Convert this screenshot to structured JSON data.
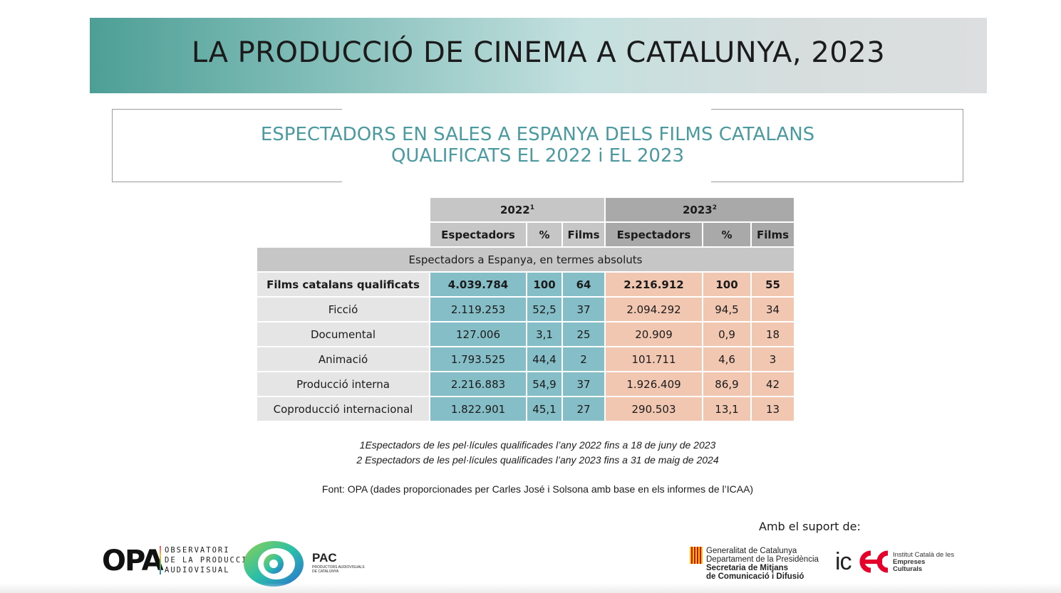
{
  "header": {
    "title": "LA PRODUCCIÓ DE CINEMA A CATALUNYA, 2023"
  },
  "subtitle": {
    "line1": "ESPECTADORS EN SALES A ESPANYA DELS FILMS CATALANS",
    "line2": "QUALIFICATS EL 2022 i EL 2023"
  },
  "table": {
    "year_2022": "2022",
    "year_2022_sup": "1",
    "year_2023": "2023",
    "year_2023_sup": "2",
    "columns": [
      "Espectadors",
      "%",
      "Films",
      "Espectadors",
      "%",
      "Films"
    ],
    "section_label": "Espectadors a Espanya, en termes absoluts",
    "rows": [
      {
        "label": "Films catalans qualificats",
        "e22": "4.039.784",
        "p22": "100",
        "f22": "64",
        "e23": "2.216.912",
        "p23": "100",
        "f23": "55"
      },
      {
        "label": "Ficció",
        "e22": "2.119.253",
        "p22": "52,5",
        "f22": "37",
        "e23": "2.094.292",
        "p23": "94,5",
        "f23": "34"
      },
      {
        "label": "Documental",
        "e22": "127.006",
        "p22": "3,1",
        "f22": "25",
        "e23": "20.909",
        "p23": "0,9",
        "f23": "18"
      },
      {
        "label": "Animació",
        "e22": "1.793.525",
        "p22": "44,4",
        "f22": "2",
        "e23": "101.711",
        "p23": "4,6",
        "f23": "3"
      },
      {
        "label": "Producció interna",
        "e22": "2.216.883",
        "p22": "54,9",
        "f22": "37",
        "e23": "1.926.409",
        "p23": "86,9",
        "f23": "42"
      },
      {
        "label": "Coproducció internacional",
        "e22": "1.822.901",
        "p22": "45,1",
        "f22": "27",
        "e23": "290.503",
        "p23": "13,1",
        "f23": "13"
      }
    ]
  },
  "notes": {
    "note1": "1Espectadors de les pel·lícules qualificades l’any 2022 fins a 18 de juny de 2023",
    "note2": "2 Espectadors de les pel·lícules qualificades l’any 2023 fins a 31 de maig de 2024",
    "source": "Font: OPA  (dades proporcionades per Carles José i Solsona amb base en els informes de l’ICAA)"
  },
  "footer": {
    "support": "Amb el suport de:",
    "opa": {
      "name": "OPA",
      "line1": "OBSERVATORI",
      "line2": "DE LA PRODUCCIÓ",
      "line3": "AUDIOVISUAL"
    },
    "pac": {
      "name": "PAC",
      "sub": "PRODUCTORS AUDIOVISUALS DE CATALUNYA"
    },
    "generalitat": {
      "line1": "Generalitat de Catalunya",
      "line2": "Departament de la Presidència",
      "line3": "Secretaria de Mitjans",
      "line4": "de Comunicació i Difusió"
    },
    "icec": {
      "name": "ic",
      "line1": "Institut Català de les",
      "line2": "Empreses",
      "line3": "Culturals"
    }
  },
  "colors": {
    "col_2022": "#85bec7",
    "col_2023": "#f2c7b2",
    "subtitle": "#4a9aa0"
  }
}
